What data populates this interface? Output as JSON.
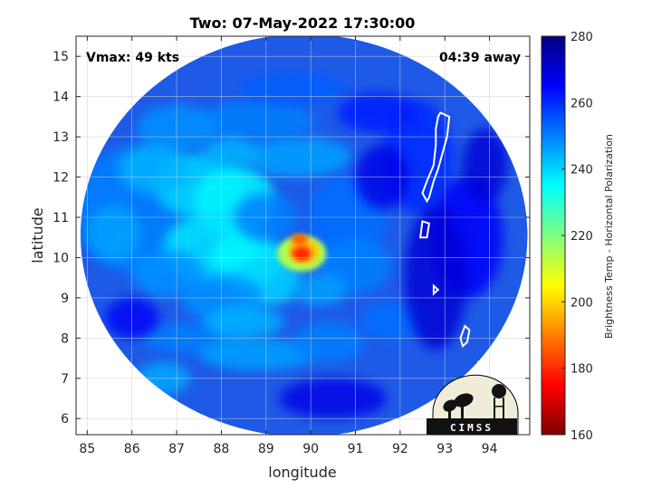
{
  "chart_data": {
    "type": "heatmap",
    "title": "Two: 07-May-2022 17:30:00",
    "xlabel": "longitude",
    "ylabel": "latitude",
    "xlim": [
      84.75,
      94.9
    ],
    "ylim": [
      5.6,
      15.5
    ],
    "xticks": [
      85,
      86,
      87,
      88,
      89,
      90,
      91,
      92,
      93,
      94
    ],
    "yticks": [
      6,
      7,
      8,
      9,
      10,
      11,
      12,
      13,
      14,
      15
    ],
    "grid": true,
    "annotations": {
      "vmax": "Vmax: 49 kts",
      "away": "04:39 away"
    },
    "colorbar": {
      "label": "Brightness Temp - Horizontal Polarization",
      "range": [
        160,
        280
      ],
      "ticks": [
        160,
        180,
        200,
        220,
        240,
        260,
        280
      ],
      "colormap": "jet"
    },
    "swath": {
      "center_lon": 89.85,
      "center_lat": 10.55,
      "radius_deg": 5.0
    },
    "storm_center": {
      "lon": 89.8,
      "lat": 10.1,
      "min_temp": 180
    },
    "logo_text": "CIMSS"
  }
}
